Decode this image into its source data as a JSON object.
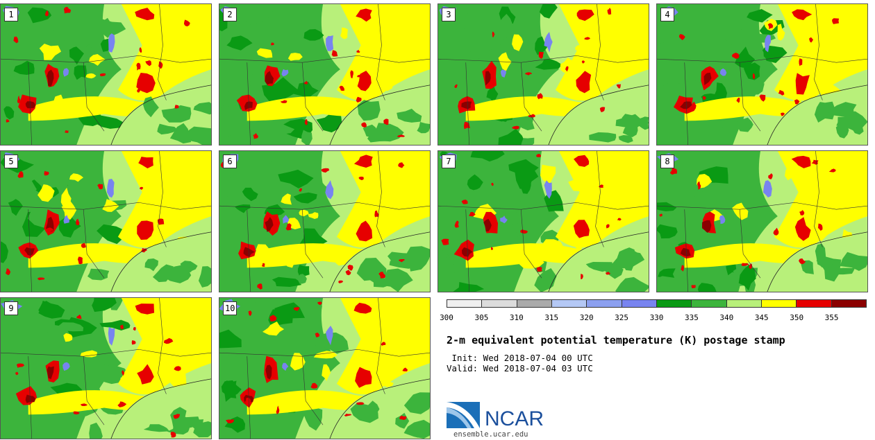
{
  "stamps": [
    {
      "label": "1",
      "seed": 11
    },
    {
      "label": "2",
      "seed": 23
    },
    {
      "label": "3",
      "seed": 37
    },
    {
      "label": "4",
      "seed": 41
    },
    {
      "label": "5",
      "seed": 53
    },
    {
      "label": "6",
      "seed": 67
    },
    {
      "label": "7",
      "seed": 71
    },
    {
      "label": "8",
      "seed": 83
    },
    {
      "label": "9",
      "seed": 97
    },
    {
      "label": "10",
      "seed": 101
    }
  ],
  "colorbar": {
    "colors": [
      "#f0f0f0",
      "#dcdcdc",
      "#aaaaaa",
      "#b4c8f5",
      "#8ca0f0",
      "#7884f0",
      "#0a9a14",
      "#3cb43c",
      "#b8f07a",
      "#ffff00",
      "#e60000",
      "#8b0000"
    ],
    "ticks": [
      "300",
      "305",
      "310",
      "315",
      "320",
      "325",
      "330",
      "335",
      "340",
      "345",
      "350",
      "355"
    ]
  },
  "map_colors": {
    "base": "#b8f07a",
    "yellow": "#ffff00",
    "green": "#3cb43c",
    "dark_green": "#0a9a14",
    "red": "#e60000",
    "dark_red": "#8b0000",
    "blue": "#7884f0"
  },
  "title": "2-m equivalent potential temperature (K) postage stamp",
  "init": " Init: Wed 2018-07-04 00 UTC",
  "valid": "Valid: Wed 2018-07-04 03 UTC",
  "logo": {
    "text": "NCAR",
    "url": "ensemble.ucar.edu"
  }
}
